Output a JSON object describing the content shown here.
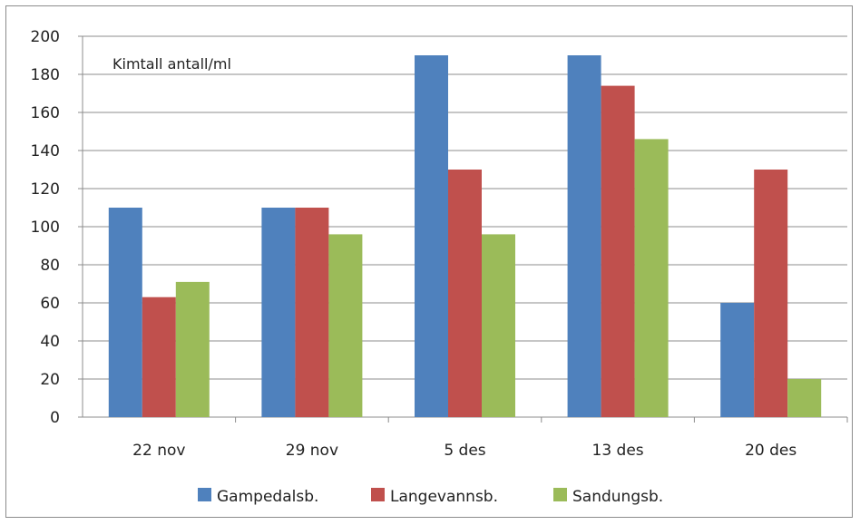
{
  "chart_data": {
    "type": "bar",
    "title": "Kimtall  antall/ml",
    "xlabel": "",
    "ylabel": "",
    "categories": [
      "22 nov",
      "29 nov",
      "5 des",
      "13 des",
      "20 des"
    ],
    "series": [
      {
        "name": "Gampedalsb.",
        "color": "#4f81bd",
        "values": [
          110,
          110,
          190,
          190,
          60
        ]
      },
      {
        "name": "Langevannsb.",
        "color": "#c0504d",
        "values": [
          63,
          110,
          130,
          174,
          130
        ]
      },
      {
        "name": "Sandungsb.",
        "color": "#9bbb59",
        "values": [
          71,
          96,
          96,
          146,
          20
        ]
      }
    ],
    "ylim": [
      0,
      200
    ],
    "yticks": [
      "0",
      "20",
      "40",
      "60",
      "80",
      "100",
      "120",
      "140",
      "160",
      "180",
      "200"
    ],
    "grid": true,
    "legend_position": "bottom"
  }
}
